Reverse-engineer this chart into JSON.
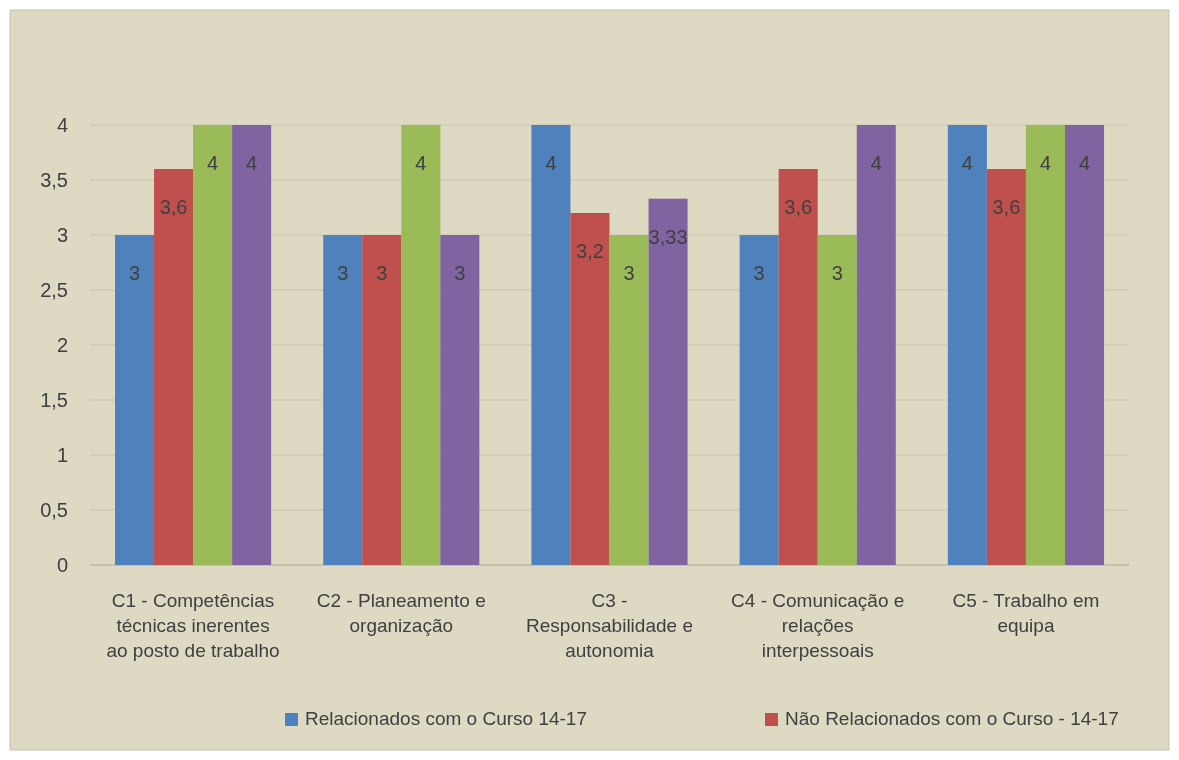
{
  "chart_data": {
    "type": "bar",
    "categories": [
      "C1 - Competências técnicas inerentes ao posto de trabalho",
      "C2 - Planeamento e organização",
      "C3 - Responsabilidade e autonomia",
      "C4 - Comunicação e relações interpessoais",
      "C5 - Trabalho em equipa"
    ],
    "series": [
      {
        "name": "Relacionados com o Curso 14-17",
        "color": "#4f81bd",
        "values": [
          3,
          3,
          4,
          3,
          4
        ],
        "value_labels": [
          "3",
          "3",
          "4",
          "3",
          "4"
        ]
      },
      {
        "name": "Não Relacionados com o Curso - 14-17",
        "color": "#c0504d",
        "values": [
          3.6,
          3,
          3.2,
          3.6,
          3.6
        ],
        "value_labels": [
          "3,6",
          "3",
          "3,2",
          "3,6",
          "3,6"
        ]
      },
      {
        "color": "#9bbb59",
        "values": [
          4,
          4,
          3,
          3,
          4
        ],
        "value_labels": [
          "4",
          "4",
          "3",
          "3",
          "4"
        ]
      },
      {
        "color": "#8064a2",
        "values": [
          4,
          3,
          3.33,
          4,
          4
        ],
        "value_labels": [
          "4",
          "3",
          "3,33",
          "4",
          "4"
        ]
      }
    ],
    "ylim": [
      0,
      4
    ],
    "yticks": [
      0,
      {
        "value": 0.5,
        "label": "0,5"
      },
      1,
      {
        "value": 1.5,
        "label": "1,5"
      },
      2,
      {
        "value": 2.5,
        "label": "2,5"
      },
      3,
      {
        "value": 3.5,
        "label": "3,5"
      },
      4
    ],
    "grid": "y",
    "legend": "bottom"
  }
}
